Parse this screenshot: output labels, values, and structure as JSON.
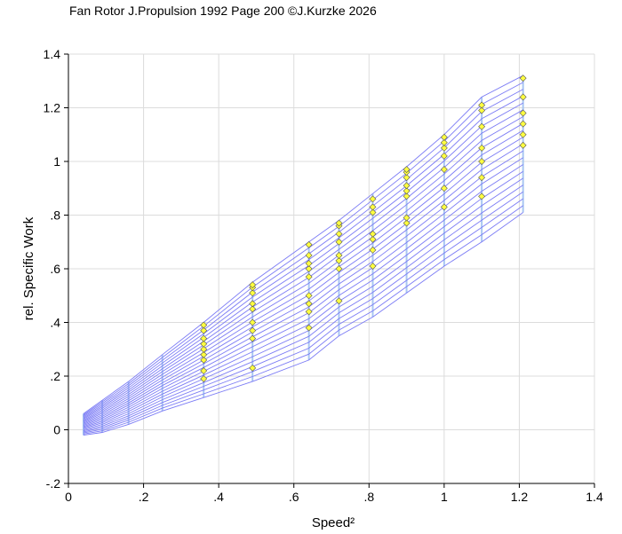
{
  "chart_data": {
    "type": "line",
    "title": "Fan Rotor J.Propulsion 1992 Page 200 ©J.Kurzke 2026",
    "xlabel": "Speed²",
    "ylabel": "rel. Specific Work",
    "xlim": [
      0,
      1.4
    ],
    "ylim": [
      -0.2,
      1.4
    ],
    "xticks": [
      "0",
      ".2",
      ".4",
      ".6",
      ".8",
      "1",
      "1.2",
      "1.4"
    ],
    "yticks": [
      "-.2",
      "0",
      ".2",
      ".4",
      ".6",
      ".8",
      "1",
      "1.2",
      "1.4"
    ],
    "grid": true,
    "colors": {
      "lines": "#7b7bf5",
      "speed_lines": "#a9c6f2",
      "points": "#ffff40",
      "grid": "#dcdcdc"
    },
    "x": [
      0.04,
      0.09,
      0.16,
      0.25,
      0.36,
      0.49,
      0.64,
      0.72,
      0.81,
      0.9,
      1.0,
      1.1,
      1.21
    ],
    "bottom_line": [
      -0.02,
      -0.01,
      0.02,
      0.07,
      0.12,
      0.18,
      0.26,
      0.35,
      0.42,
      0.51,
      0.61,
      0.7,
      0.81
    ],
    "top_line": [
      0.06,
      0.11,
      0.18,
      0.28,
      0.4,
      0.55,
      0.7,
      0.78,
      0.88,
      0.98,
      1.1,
      1.24,
      1.32
    ],
    "line_count": 21,
    "measured_points": [
      {
        "x": 0.36,
        "y": [
          0.19,
          0.22,
          0.26,
          0.28,
          0.3,
          0.32,
          0.34,
          0.37,
          0.39
        ]
      },
      {
        "x": 0.49,
        "y": [
          0.23,
          0.34,
          0.37,
          0.4,
          0.45,
          0.47,
          0.51,
          0.53,
          0.54
        ]
      },
      {
        "x": 0.64,
        "y": [
          0.38,
          0.44,
          0.47,
          0.5,
          0.57,
          0.6,
          0.62,
          0.65,
          0.69
        ]
      },
      {
        "x": 0.72,
        "y": [
          0.48,
          0.6,
          0.63,
          0.65,
          0.7,
          0.73,
          0.76,
          0.77
        ]
      },
      {
        "x": 0.81,
        "y": [
          0.61,
          0.67,
          0.71,
          0.73,
          0.81,
          0.83,
          0.86
        ]
      },
      {
        "x": 0.9,
        "y": [
          0.77,
          0.79,
          0.87,
          0.89,
          0.91,
          0.94,
          0.96,
          0.97
        ]
      },
      {
        "x": 1.0,
        "y": [
          0.83,
          0.9,
          0.97,
          1.02,
          1.05,
          1.07,
          1.09
        ]
      },
      {
        "x": 1.1,
        "y": [
          0.87,
          0.94,
          1.0,
          1.05,
          1.13,
          1.19,
          1.21
        ]
      },
      {
        "x": 1.21,
        "y": [
          1.06,
          1.1,
          1.14,
          1.18,
          1.24,
          1.31
        ]
      }
    ]
  }
}
